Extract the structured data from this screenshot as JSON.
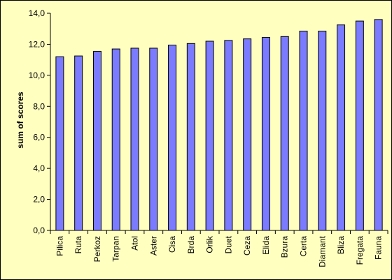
{
  "chart_data": {
    "type": "bar",
    "title": "",
    "xlabel": "",
    "ylabel": "sum of scores",
    "ylim": [
      0,
      14
    ],
    "yticks": [
      "0,0",
      "2,0",
      "4,0",
      "6,0",
      "8,0",
      "10,0",
      "12,0",
      "14,0"
    ],
    "categories": [
      "Pilica",
      "Ruta",
      "Perkoz",
      "Tarpan",
      "Atol",
      "Aster",
      "Cisa",
      "Brda",
      "Orlik",
      "Duet",
      "Ceza",
      "Elida",
      "Bzura",
      "Certa",
      "Diamant",
      "Bliza",
      "Fregata",
      "Fauna"
    ],
    "values": [
      11.2,
      11.25,
      11.55,
      11.7,
      11.75,
      11.75,
      11.95,
      12.05,
      12.2,
      12.25,
      12.35,
      12.45,
      12.5,
      12.85,
      12.85,
      13.25,
      13.5,
      13.6
    ],
    "grid": false,
    "legend": "none",
    "bar_color": "#7b7bff",
    "bar_outline": "#000000",
    "background": "#ffffc0"
  }
}
